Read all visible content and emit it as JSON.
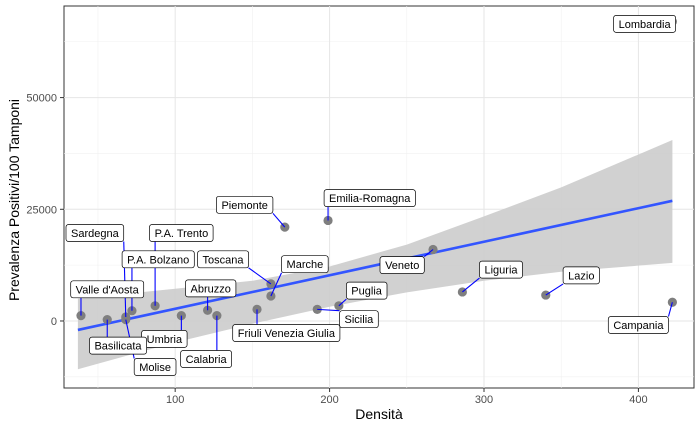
{
  "chart_data": {
    "type": "scatter",
    "title": "",
    "xlabel": "Densità",
    "ylabel": "Prevalenza Positivi/100 Tamponi",
    "xlim": [
      28,
      436
    ],
    "ylim": [
      -15000,
      70500
    ],
    "xticks": [
      100,
      200,
      300,
      400
    ],
    "yticks": [
      0,
      25000,
      50000
    ],
    "grid": true,
    "legend": "none",
    "colors": {
      "point": "#7f7f7f",
      "line": "#3355ff",
      "ribbon": "#cccccc",
      "leader": "#0000ff",
      "grid_major": "#e6e6e6"
    },
    "points": [
      {
        "name": "Lombardia",
        "x": 422,
        "y": 67000,
        "lx": 404,
        "ly": 66500
      },
      {
        "name": "Emilia-Romagna",
        "x": 199,
        "y": 22500,
        "lx": 226,
        "ly": 27500
      },
      {
        "name": "Piemonte",
        "x": 171,
        "y": 21000,
        "lx": 145,
        "ly": 26000
      },
      {
        "name": "Veneto",
        "x": 267,
        "y": 16000,
        "lx": 247,
        "ly": 12500
      },
      {
        "name": "Liguria",
        "x": 286,
        "y": 6500,
        "lx": 311,
        "ly": 11500
      },
      {
        "name": "Lazio",
        "x": 340,
        "y": 5800,
        "lx": 363,
        "ly": 10200
      },
      {
        "name": "Campania",
        "x": 422,
        "y": 4200,
        "lx": 400,
        "ly": -900
      },
      {
        "name": "Toscana",
        "x": 162,
        "y": 8300,
        "lx": 131,
        "ly": 13800
      },
      {
        "name": "Marche",
        "x": 162,
        "y": 5600,
        "lx": 184,
        "ly": 12700
      },
      {
        "name": "Puglia",
        "x": 206,
        "y": 3400,
        "lx": 224,
        "ly": 6800
      },
      {
        "name": "Sicilia",
        "x": 192,
        "y": 2600,
        "lx": 219,
        "ly": 400
      },
      {
        "name": "Friuli Venezia Giulia",
        "x": 153,
        "y": 2600,
        "lx": 172,
        "ly": -2700
      },
      {
        "name": "Abruzzo",
        "x": 121,
        "y": 2400,
        "lx": 123,
        "ly": 7300
      },
      {
        "name": "Calabria",
        "x": 127,
        "y": 1200,
        "lx": 120,
        "ly": -8500
      },
      {
        "name": "Umbria",
        "x": 104,
        "y": 1200,
        "lx": 93,
        "ly": -4000
      },
      {
        "name": "P.A. Trento",
        "x": 87,
        "y": 3400,
        "lx": 104,
        "ly": 19700
      },
      {
        "name": "P.A. Bolzano",
        "x": 72,
        "y": 2300,
        "lx": 89,
        "ly": 13800
      },
      {
        "name": "Sardegna",
        "x": 68,
        "y": 900,
        "lx": 48,
        "ly": 19700
      },
      {
        "name": "Valle d'Aosta",
        "x": 39,
        "y": 1200,
        "lx": 56,
        "ly": 7100
      },
      {
        "name": "Basilicata",
        "x": 56,
        "y": 300,
        "lx": 63,
        "ly": -5500
      },
      {
        "name": "Molise",
        "x": 68,
        "y": 300,
        "lx": 87,
        "ly": -10300
      }
    ],
    "regression": {
      "x": [
        37,
        422
      ],
      "y": [
        -2000,
        26900
      ]
    },
    "ribbon": {
      "x": [
        37,
        100,
        150,
        200,
        250,
        300,
        350,
        422
      ],
      "upper": [
        5000,
        7200,
        9000,
        12200,
        17100,
        23400,
        29900,
        40500
      ],
      "lower": [
        -10800,
        -4800,
        -600,
        3200,
        6400,
        9000,
        11000,
        13000
      ]
    }
  }
}
